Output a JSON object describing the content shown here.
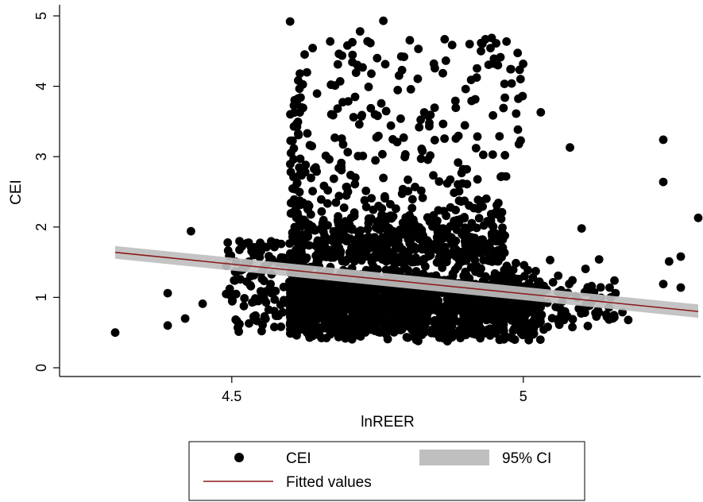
{
  "chart_data": {
    "type": "scatter",
    "xlabel": "lnREER",
    "ylabel": "CEI",
    "xlim": [
      4.3,
      5.3
    ],
    "ylim": [
      0,
      5
    ],
    "x_ticks": [
      4.5,
      5
    ],
    "x_tick_labels": [
      "4.5",
      "5"
    ],
    "y_ticks": [
      0,
      1,
      2,
      3,
      4,
      5
    ],
    "y_tick_labels": [
      "0",
      "1",
      "2",
      "3",
      "4",
      "5"
    ],
    "grid": false,
    "legend_position": "bottom",
    "legend": {
      "scatter": "CEI",
      "ci": "95% CI",
      "fit": "Fitted values"
    },
    "fitted_line": {
      "x": [
        4.3,
        5.3
      ],
      "y": [
        1.64,
        0.8
      ]
    },
    "ci_band": {
      "x": [
        4.3,
        5.3
      ],
      "lower": [
        1.55,
        0.71
      ],
      "upper": [
        1.73,
        0.9
      ]
    },
    "series_notable_points": [
      {
        "x": 4.3,
        "y": 0.5
      },
      {
        "x": 4.39,
        "y": 1.06
      },
      {
        "x": 4.39,
        "y": 0.6
      },
      {
        "x": 4.43,
        "y": 1.94
      },
      {
        "x": 4.42,
        "y": 0.7
      },
      {
        "x": 4.45,
        "y": 0.91
      },
      {
        "x": 4.6,
        "y": 4.92
      },
      {
        "x": 4.76,
        "y": 4.93
      },
      {
        "x": 4.72,
        "y": 4.78
      },
      {
        "x": 4.82,
        "y": 4.53
      },
      {
        "x": 4.95,
        "y": 4.32
      },
      {
        "x": 4.98,
        "y": 4.04
      },
      {
        "x": 5.03,
        "y": 3.63
      },
      {
        "x": 5.08,
        "y": 3.13
      },
      {
        "x": 5.1,
        "y": 1.98
      },
      {
        "x": 5.13,
        "y": 1.54
      },
      {
        "x": 5.24,
        "y": 3.24
      },
      {
        "x": 5.24,
        "y": 2.64
      },
      {
        "x": 5.24,
        "y": 1.19
      },
      {
        "x": 5.25,
        "y": 1.51
      },
      {
        "x": 5.27,
        "y": 1.58
      },
      {
        "x": 5.27,
        "y": 1.14
      },
      {
        "x": 5.3,
        "y": 2.13
      },
      {
        "x": 5.18,
        "y": 0.68
      },
      {
        "x": 5.15,
        "y": 1.0
      },
      {
        "x": 5.17,
        "y": 0.79
      }
    ]
  },
  "colors": {
    "marker": "#000000",
    "fit_line": "#8b1a1a",
    "ci_band": "#bfbfbf",
    "axis": "#000000"
  }
}
